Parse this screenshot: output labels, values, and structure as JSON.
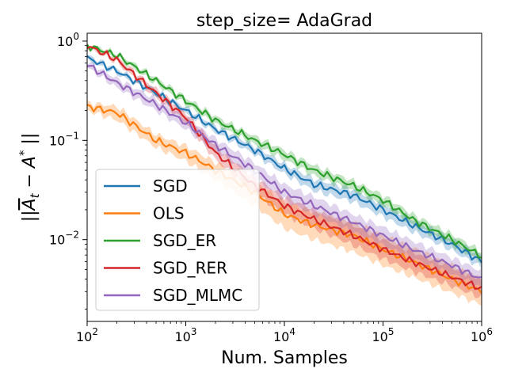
{
  "chart_data": {
    "type": "line",
    "title": "step_size= AdaGrad",
    "xlabel": "Num. Samples",
    "ylabel_parts": {
      "open": "||",
      "A": "A",
      "sub": "t",
      "minus": " − A",
      "sup": "*",
      "close": " ||"
    },
    "xscale": "log",
    "yscale": "log",
    "xlim": [
      100,
      1000000
    ],
    "ylim": [
      0.0015,
      1.2
    ],
    "x_ticks": [
      {
        "base": "10",
        "exp": "2"
      },
      {
        "base": "10",
        "exp": "3"
      },
      {
        "base": "10",
        "exp": "4"
      },
      {
        "base": "10",
        "exp": "5"
      },
      {
        "base": "10",
        "exp": "6"
      }
    ],
    "y_ticks": [
      {
        "base": "10",
        "exp": "0"
      },
      {
        "base": "10",
        "exp": "−1"
      },
      {
        "base": "10",
        "exp": "−2"
      }
    ],
    "grid": false,
    "legend_position": "lower-left",
    "x": [
      100,
      200,
      500,
      1000,
      2000,
      5000,
      10000,
      20000,
      50000,
      100000,
      200000,
      500000,
      1000000
    ],
    "series": [
      {
        "name": "SGD",
        "color": "#1f77b4",
        "values": [
          0.68,
          0.5,
          0.3,
          0.2,
          0.13,
          0.08,
          0.052,
          0.036,
          0.028,
          0.02,
          0.014,
          0.009,
          0.006
        ],
        "lower": [
          0.64,
          0.47,
          0.28,
          0.185,
          0.12,
          0.072,
          0.046,
          0.031,
          0.024,
          0.017,
          0.012,
          0.0078,
          0.0052
        ],
        "upper": [
          0.72,
          0.53,
          0.32,
          0.215,
          0.14,
          0.088,
          0.058,
          0.041,
          0.032,
          0.023,
          0.016,
          0.0102,
          0.0068
        ]
      },
      {
        "name": "OLS",
        "color": "#ff7f0e",
        "values": [
          0.22,
          0.19,
          0.1,
          0.075,
          0.05,
          0.03,
          0.018,
          0.014,
          0.011,
          0.008,
          0.006,
          0.004,
          0.003
        ],
        "lower": [
          0.2,
          0.16,
          0.085,
          0.062,
          0.04,
          0.022,
          0.013,
          0.01,
          0.0075,
          0.0055,
          0.0042,
          0.0029,
          0.0022
        ],
        "upper": [
          0.24,
          0.22,
          0.115,
          0.088,
          0.06,
          0.038,
          0.024,
          0.019,
          0.015,
          0.011,
          0.0083,
          0.0055,
          0.004
        ]
      },
      {
        "name": "SGD_ER",
        "color": "#2ca02c",
        "values": [
          0.9,
          0.72,
          0.4,
          0.25,
          0.16,
          0.1,
          0.072,
          0.05,
          0.035,
          0.025,
          0.016,
          0.01,
          0.0068
        ],
        "lower": [
          0.86,
          0.68,
          0.37,
          0.23,
          0.145,
          0.09,
          0.064,
          0.044,
          0.031,
          0.022,
          0.014,
          0.0088,
          0.006
        ],
        "upper": [
          0.94,
          0.76,
          0.43,
          0.27,
          0.175,
          0.11,
          0.08,
          0.056,
          0.039,
          0.028,
          0.018,
          0.0113,
          0.0076
        ]
      },
      {
        "name": "SGD_RER",
        "color": "#d62728",
        "values": [
          0.9,
          0.65,
          0.3,
          0.17,
          0.075,
          0.035,
          0.022,
          0.016,
          0.011,
          0.008,
          0.006,
          0.0042,
          0.0032
        ],
        "lower": [
          0.86,
          0.61,
          0.27,
          0.15,
          0.064,
          0.029,
          0.018,
          0.013,
          0.0088,
          0.0064,
          0.0048,
          0.0034,
          0.0026
        ],
        "upper": [
          0.94,
          0.69,
          0.33,
          0.19,
          0.088,
          0.042,
          0.027,
          0.02,
          0.014,
          0.01,
          0.0075,
          0.0052,
          0.004
        ]
      },
      {
        "name": "SGD_MLMC",
        "color": "#9467bd",
        "values": [
          0.58,
          0.38,
          0.23,
          0.15,
          0.09,
          0.05,
          0.03,
          0.022,
          0.015,
          0.011,
          0.008,
          0.0055,
          0.004
        ],
        "lower": [
          0.54,
          0.34,
          0.2,
          0.13,
          0.077,
          0.042,
          0.025,
          0.018,
          0.012,
          0.0088,
          0.0065,
          0.0045,
          0.0033
        ],
        "upper": [
          0.62,
          0.42,
          0.26,
          0.17,
          0.104,
          0.059,
          0.036,
          0.027,
          0.018,
          0.0134,
          0.0097,
          0.0066,
          0.0048
        ]
      }
    ]
  }
}
